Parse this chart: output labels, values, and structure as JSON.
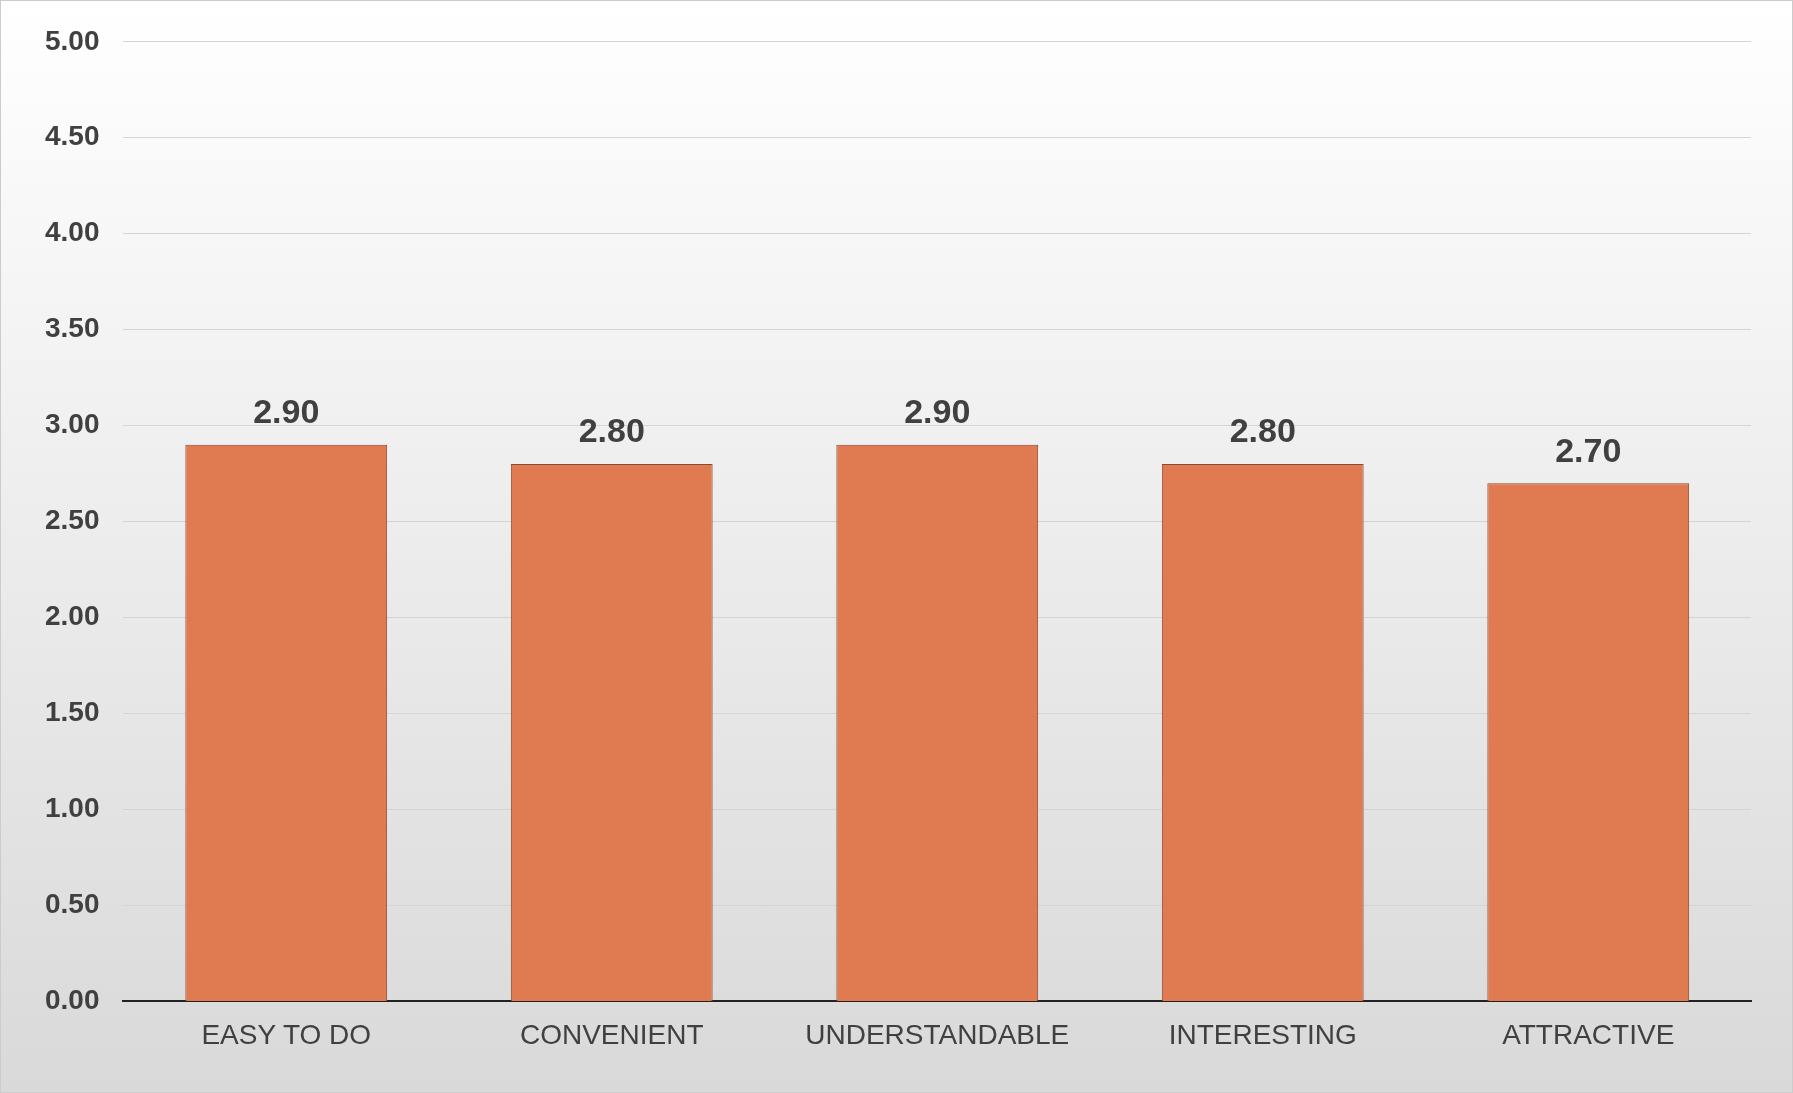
{
  "chart_data": {
    "type": "bar",
    "categories": [
      "EASY TO DO",
      "CONVENIENT",
      "UNDERSTANDABLE",
      "INTERESTING",
      "ATTRACTIVE"
    ],
    "values": [
      2.9,
      2.8,
      2.9,
      2.8,
      2.7
    ],
    "value_labels": [
      "2.90",
      "2.80",
      "2.90",
      "2.80",
      "2.70"
    ],
    "color": "#e07a50",
    "ylim": [
      0,
      5
    ],
    "yticks": [
      {
        "value": 0,
        "label": "0.00"
      },
      {
        "value": 0.5,
        "label": "0.50"
      },
      {
        "value": 1,
        "label": "1.00"
      },
      {
        "value": 1.5,
        "label": "1.50"
      },
      {
        "value": 2,
        "label": "2.00"
      },
      {
        "value": 2.5,
        "label": "2.50"
      },
      {
        "value": 3,
        "label": "3.00"
      },
      {
        "value": 3.5,
        "label": "3.50"
      },
      {
        "value": 4,
        "label": "4.00"
      },
      {
        "value": 4.5,
        "label": "4.50"
      },
      {
        "value": 5,
        "label": "5.00"
      }
    ],
    "grid": "y"
  }
}
